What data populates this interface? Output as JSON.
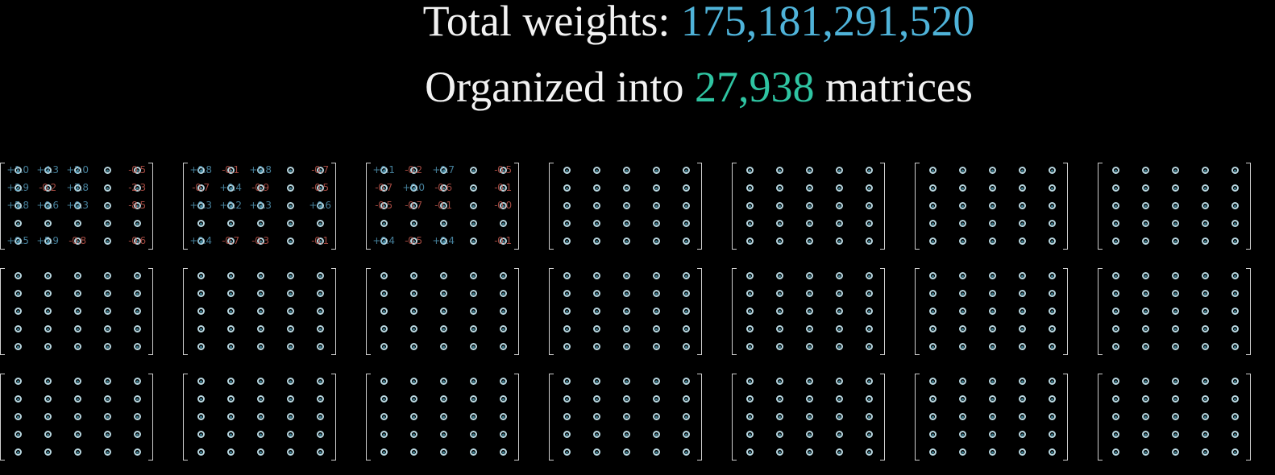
{
  "headline": {
    "total_label": "Total weights: ",
    "total_value": "175,181,291,520",
    "organized_prefix": "Organized into ",
    "matrix_count": "27,938",
    "organized_suffix": " matrices"
  },
  "colors": {
    "background": "#000000",
    "text": "#f2f2f2",
    "total_value": "#4fb3d9",
    "matrix_count": "#2fc4a2",
    "positive_weight": "#5caacd",
    "negative_weight": "#d66056",
    "bracket": "#cfcfcf",
    "dot": "#b8d6df"
  },
  "matrix_grid": {
    "rows": 3,
    "columns": 7,
    "cells_per_matrix": 25,
    "visible_weights": [
      [
        [
          "+1.0",
          "+4.3",
          "+2.0",
          "",
          "-0.5"
        ],
        [
          "+2.9",
          "-0.2",
          "+7.8",
          "",
          "-2.3"
        ],
        [
          "+5.8",
          "+0.6",
          "+0.3",
          "",
          "-8.5"
        ],
        [
          "",
          "",
          "",
          "",
          ""
        ],
        [
          "+9.5",
          "+5.9",
          "-0.8",
          "",
          "-0.6"
        ]
      ],
      [
        [
          "+0.8",
          "-0.1",
          "+0.8",
          "",
          "-0.7"
        ],
        [
          "-0.7",
          "+0.4",
          "-0.9",
          "",
          "-0.5"
        ],
        [
          "+0.3",
          "+0.2",
          "+0.3",
          "",
          "+0.6"
        ],
        [
          "",
          "",
          "",
          "",
          ""
        ],
        [
          "+0.4",
          "-0.7",
          "-0.3",
          "",
          "-0.1"
        ]
      ],
      [
        [
          "+0.1",
          "-0.2",
          "+0.7",
          "",
          "-0.5"
        ],
        [
          "-0.7",
          "+0.0",
          "-0.6",
          "",
          "-0.1"
        ],
        [
          "-0.5",
          "-0.7",
          "-0.1",
          "",
          "-0.0"
        ],
        [
          "",
          "",
          "",
          "",
          ""
        ],
        [
          "+0.4",
          "-0.5",
          "+0.4",
          "",
          "-0.1"
        ]
      ]
    ]
  }
}
